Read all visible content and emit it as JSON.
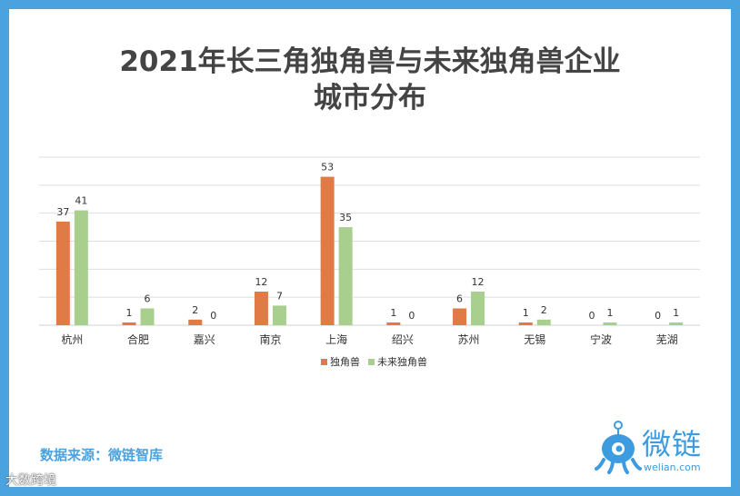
{
  "title_line1": "2021年长三角独角兽与未来独角兽企业",
  "title_line2": "城市分布",
  "source": "数据来源：微链智库",
  "logo": {
    "text": "微链",
    "domain": "welian.com"
  },
  "watermark": "大数跨境",
  "colors": {
    "unicorn": "#e07b47",
    "future": "#a8cf8e",
    "grid": "#dedede",
    "background": "#4aa3df"
  },
  "chart_data": {
    "type": "bar",
    "title": "2021年长三角独角兽与未来独角兽企业城市分布",
    "categories": [
      "杭州",
      "合肥",
      "嘉兴",
      "南京",
      "上海",
      "绍兴",
      "苏州",
      "无锡",
      "宁波",
      "芜湖"
    ],
    "series": [
      {
        "name": "独角兽",
        "values": [
          37,
          1,
          2,
          12,
          53,
          1,
          6,
          1,
          0,
          0
        ]
      },
      {
        "name": "未来独角兽",
        "values": [
          41,
          6,
          0,
          7,
          35,
          0,
          12,
          2,
          1,
          1
        ]
      }
    ],
    "xlabel": "",
    "ylabel": "",
    "ylim": [
      0,
      60
    ],
    "grid": true,
    "legend": "bottom"
  }
}
